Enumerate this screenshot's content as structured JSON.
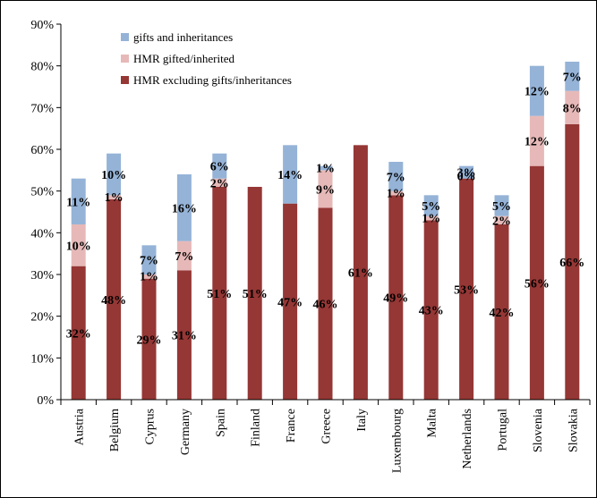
{
  "chart_data": {
    "type": "bar",
    "stacked": true,
    "categories": [
      "Austria",
      "Belgium",
      "Cyprus",
      "Germany",
      "Spain",
      "Finland",
      "France",
      "Greece",
      "Italy",
      "Luxembourg",
      "Malta",
      "Netherlands",
      "Portugal",
      "Slovenia",
      "Slovakia"
    ],
    "series": [
      {
        "name": "HMR excluding gifts/inheritances",
        "color": "#953735",
        "values": [
          32,
          48,
          29,
          31,
          51,
          51,
          47,
          46,
          61,
          49,
          43,
          53,
          42,
          56,
          66
        ],
        "labels": [
          "32%",
          "48%",
          "29%",
          "31%",
          "51%",
          "51%",
          "47%",
          "46%",
          "61%",
          "49%",
          "43%",
          "53%",
          "42%",
          "56%",
          "66%"
        ]
      },
      {
        "name": "HMR gifted/inherited",
        "color": "#e6b9b8",
        "values": [
          10,
          1,
          1,
          7,
          2,
          0,
          0,
          9,
          0,
          1,
          1,
          0,
          2,
          12,
          8
        ],
        "labels": [
          "10%",
          "1%",
          "1%",
          "7%",
          "2%",
          "",
          "",
          "9%",
          "",
          "1%",
          "1%",
          "0%",
          "2%",
          "12%",
          "8%"
        ]
      },
      {
        "name": "gifts and inheritances",
        "color": "#95b3d7",
        "values": [
          11,
          10,
          7,
          16,
          6,
          0,
          14,
          1,
          0,
          7,
          5,
          3,
          5,
          12,
          7
        ],
        "labels": [
          "11%",
          "10%",
          "7%",
          "16%",
          "6%",
          "",
          "14%",
          "1%",
          "",
          "7%",
          "5%",
          "3%",
          "5%",
          "12%",
          "7%"
        ]
      }
    ],
    "ylim": [
      0,
      90
    ],
    "yticks": [
      "0%",
      "10%",
      "20%",
      "30%",
      "40%",
      "50%",
      "60%",
      "70%",
      "80%",
      "90%"
    ],
    "legend": [
      "gifts and inheritances",
      "HMR gifted/inherited",
      "HMR excluding gifts/inheritances"
    ],
    "legend_position": "top-left",
    "grid": false
  }
}
